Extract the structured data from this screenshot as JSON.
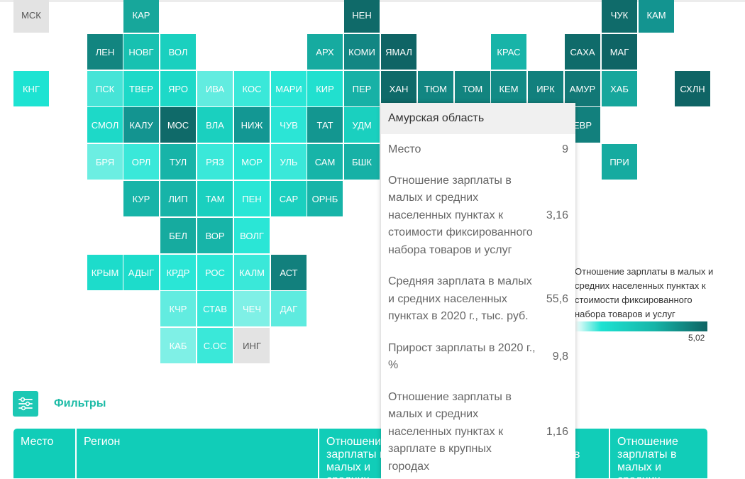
{
  "map": {
    "regions": [
      {
        "abbr": "МСК",
        "row": 0,
        "col": 0,
        "color": "#e3e3e3"
      },
      {
        "abbr": "КАР",
        "row": 0,
        "col": 3,
        "color": "#17a79b"
      },
      {
        "abbr": "НЕН",
        "row": 0,
        "col": 9,
        "color": "#0f6a69"
      },
      {
        "abbr": "ЧУК",
        "row": 0,
        "col": 16,
        "color": "#0f6b6a"
      },
      {
        "abbr": "КАМ",
        "row": 0,
        "col": 17,
        "color": "#139490"
      },
      {
        "abbr": "ЛЕН",
        "row": 1,
        "col": 2,
        "color": "#128580"
      },
      {
        "abbr": "НОВГ",
        "row": 1,
        "col": 3,
        "color": "#18c1b1"
      },
      {
        "abbr": "ВОЛ",
        "row": 1,
        "col": 4,
        "color": "#1ad0bf"
      },
      {
        "abbr": "АРХ",
        "row": 1,
        "col": 8,
        "color": "#16aba0"
      },
      {
        "abbr": "КОМИ",
        "row": 1,
        "col": 9,
        "color": "#128683"
      },
      {
        "abbr": "ЯМАЛ",
        "row": 1,
        "col": 10,
        "color": "#0f6465"
      },
      {
        "abbr": "КРАС",
        "row": 1,
        "col": 13,
        "color": "#17b4a8"
      },
      {
        "abbr": "САХА",
        "row": 1,
        "col": 15,
        "color": "#0f6b6a"
      },
      {
        "abbr": "МАГ",
        "row": 1,
        "col": 16,
        "color": "#0f6465"
      },
      {
        "abbr": "КНГ",
        "row": 2,
        "col": 0,
        "color": "#1de3d2"
      },
      {
        "abbr": "ПСК",
        "row": 2,
        "col": 2,
        "color": "#46e4d7"
      },
      {
        "abbr": "ТВЕР",
        "row": 2,
        "col": 3,
        "color": "#1dd9c8"
      },
      {
        "abbr": "ЯРО",
        "row": 2,
        "col": 4,
        "color": "#1dd9c8"
      },
      {
        "abbr": "ИВА",
        "row": 2,
        "col": 5,
        "color": "#62ece0"
      },
      {
        "abbr": "КОС",
        "row": 2,
        "col": 6,
        "color": "#3ae8d9"
      },
      {
        "abbr": "МАРИ",
        "row": 2,
        "col": 7,
        "color": "#2ae6d6"
      },
      {
        "abbr": "КИР",
        "row": 2,
        "col": 8,
        "color": "#21e0cf"
      },
      {
        "abbr": "ПЕР",
        "row": 2,
        "col": 9,
        "color": "#17b1a6"
      },
      {
        "abbr": "ХАН",
        "row": 2,
        "col": 10,
        "color": "#0f6a69"
      },
      {
        "abbr": "ТЮМ",
        "row": 2,
        "col": 11,
        "color": "#128682"
      },
      {
        "abbr": "ТОМ",
        "row": 2,
        "col": 12,
        "color": "#12847f"
      },
      {
        "abbr": "КЕМ",
        "row": 2,
        "col": 13,
        "color": "#128b86"
      },
      {
        "abbr": "ИРК",
        "row": 2,
        "col": 14,
        "color": "#12807d"
      },
      {
        "abbr": "АМУР",
        "row": 2,
        "col": 15,
        "color": "#127876"
      },
      {
        "abbr": "ХАБ",
        "row": 2,
        "col": 16,
        "color": "#16a69c"
      },
      {
        "abbr": "СХЛН",
        "row": 2,
        "col": 18,
        "color": "#0f6465"
      },
      {
        "abbr": "СМОЛ",
        "row": 3,
        "col": 2,
        "color": "#1dd9c8"
      },
      {
        "abbr": "КАЛУ",
        "row": 3,
        "col": 3,
        "color": "#139490"
      },
      {
        "abbr": "МОС",
        "row": 3,
        "col": 4,
        "color": "#0f6a69"
      },
      {
        "abbr": "ВЛА",
        "row": 3,
        "col": 5,
        "color": "#1ad0bf"
      },
      {
        "abbr": "НИЖ",
        "row": 3,
        "col": 6,
        "color": "#139793"
      },
      {
        "abbr": "ЧУВ",
        "row": 3,
        "col": 7,
        "color": "#2be5d6"
      },
      {
        "abbr": "ТАТ",
        "row": 3,
        "col": 8,
        "color": "#139690"
      },
      {
        "abbr": "УДМ",
        "row": 3,
        "col": 9,
        "color": "#1ad0bf"
      },
      {
        "abbr": "ЕВР",
        "row": 3,
        "col": 15,
        "color": "#12807d"
      },
      {
        "abbr": "БРЯ",
        "row": 4,
        "col": 2,
        "color": "#6ceee2"
      },
      {
        "abbr": "ОРЛ",
        "row": 4,
        "col": 3,
        "color": "#3ae8d9"
      },
      {
        "abbr": "ТУЛ",
        "row": 4,
        "col": 4,
        "color": "#17b4a8"
      },
      {
        "abbr": "РЯЗ",
        "row": 4,
        "col": 5,
        "color": "#3ae8d9"
      },
      {
        "abbr": "МОР",
        "row": 4,
        "col": 6,
        "color": "#2ae6d6"
      },
      {
        "abbr": "УЛЬ",
        "row": 4,
        "col": 7,
        "color": "#3ae8d9"
      },
      {
        "abbr": "САМ",
        "row": 4,
        "col": 8,
        "color": "#17b4a8"
      },
      {
        "abbr": "БШК",
        "row": 4,
        "col": 9,
        "color": "#17b1a6"
      },
      {
        "abbr": "ПРИ",
        "row": 4,
        "col": 16,
        "color": "#16aba0"
      },
      {
        "abbr": "КУР",
        "row": 5,
        "col": 3,
        "color": "#17b4a8"
      },
      {
        "abbr": "ЛИП",
        "row": 5,
        "col": 4,
        "color": "#17b4a8"
      },
      {
        "abbr": "ТАМ",
        "row": 5,
        "col": 5,
        "color": "#1ad0bf"
      },
      {
        "abbr": "ПЕН",
        "row": 5,
        "col": 6,
        "color": "#2ae6d6"
      },
      {
        "abbr": "САР",
        "row": 5,
        "col": 7,
        "color": "#1ad0bf"
      },
      {
        "abbr": "ОРНБ",
        "row": 5,
        "col": 8,
        "color": "#17b4a8"
      },
      {
        "abbr": "БЕЛ",
        "row": 6,
        "col": 4,
        "color": "#16ab9f"
      },
      {
        "abbr": "ВОР",
        "row": 6,
        "col": 5,
        "color": "#17b4a8"
      },
      {
        "abbr": "ВОЛГ",
        "row": 6,
        "col": 6,
        "color": "#2ae6d6"
      },
      {
        "abbr": "КРЫМ",
        "row": 7,
        "col": 2,
        "color": "#1ddccb"
      },
      {
        "abbr": "АДЫГ",
        "row": 7,
        "col": 3,
        "color": "#1ddccb"
      },
      {
        "abbr": "КРДР",
        "row": 7,
        "col": 4,
        "color": "#2ae6d6"
      },
      {
        "abbr": "РОС",
        "row": 7,
        "col": 5,
        "color": "#2ae6d6"
      },
      {
        "abbr": "КАЛМ",
        "row": 7,
        "col": 6,
        "color": "#3ae8d9"
      },
      {
        "abbr": "АСТ",
        "row": 7,
        "col": 7,
        "color": "#12807d"
      },
      {
        "abbr": "КЧР",
        "row": 8,
        "col": 4,
        "color": "#62ece0"
      },
      {
        "abbr": "СТАВ",
        "row": 8,
        "col": 5,
        "color": "#3ae8d9"
      },
      {
        "abbr": "ЧЕЧ",
        "row": 8,
        "col": 6,
        "color": "#7ff0e6"
      },
      {
        "abbr": "ДАГ",
        "row": 8,
        "col": 7,
        "color": "#5eebdf"
      },
      {
        "abbr": "КАБ",
        "row": 9,
        "col": 4,
        "color": "#7ff0e6"
      },
      {
        "abbr": "С.ОС",
        "row": 9,
        "col": 5,
        "color": "#3ae8d9"
      },
      {
        "abbr": "ИНГ",
        "row": 9,
        "col": 6,
        "color": "#e3e3e3"
      }
    ]
  },
  "legend": {
    "title": "Отношение зарплаты в малых и средних населенных пунктах к стоимости фиксированного набора товаров и услуг",
    "max": "5,02"
  },
  "filters": {
    "label": "Фильтры"
  },
  "table": {
    "headers": [
      "Место",
      "Регион",
      "Отношение зарплаты в малых и средних",
      "в",
      "Отношение зарплаты в малых и средних"
    ]
  },
  "tooltip": {
    "title": "Амурская область",
    "rows": [
      {
        "label": "Место",
        "value": "9"
      },
      {
        "label": "Отношение зарплаты в малых и средних населенных пунктах к стоимости фиксированного набора товаров и услуг",
        "value": "3,16"
      },
      {
        "label": "Средняя зарплата в малых и средних населенных пунктах в 2020 г., тыс. руб.",
        "value": "55,6"
      },
      {
        "label": "Прирост зарплаты в 2020 г., %",
        "value": "9,8"
      },
      {
        "label": "Отношение зарплаты в малых и средних населенных пунктах к зарплате в крупных городах",
        "value": "1,16"
      }
    ]
  }
}
